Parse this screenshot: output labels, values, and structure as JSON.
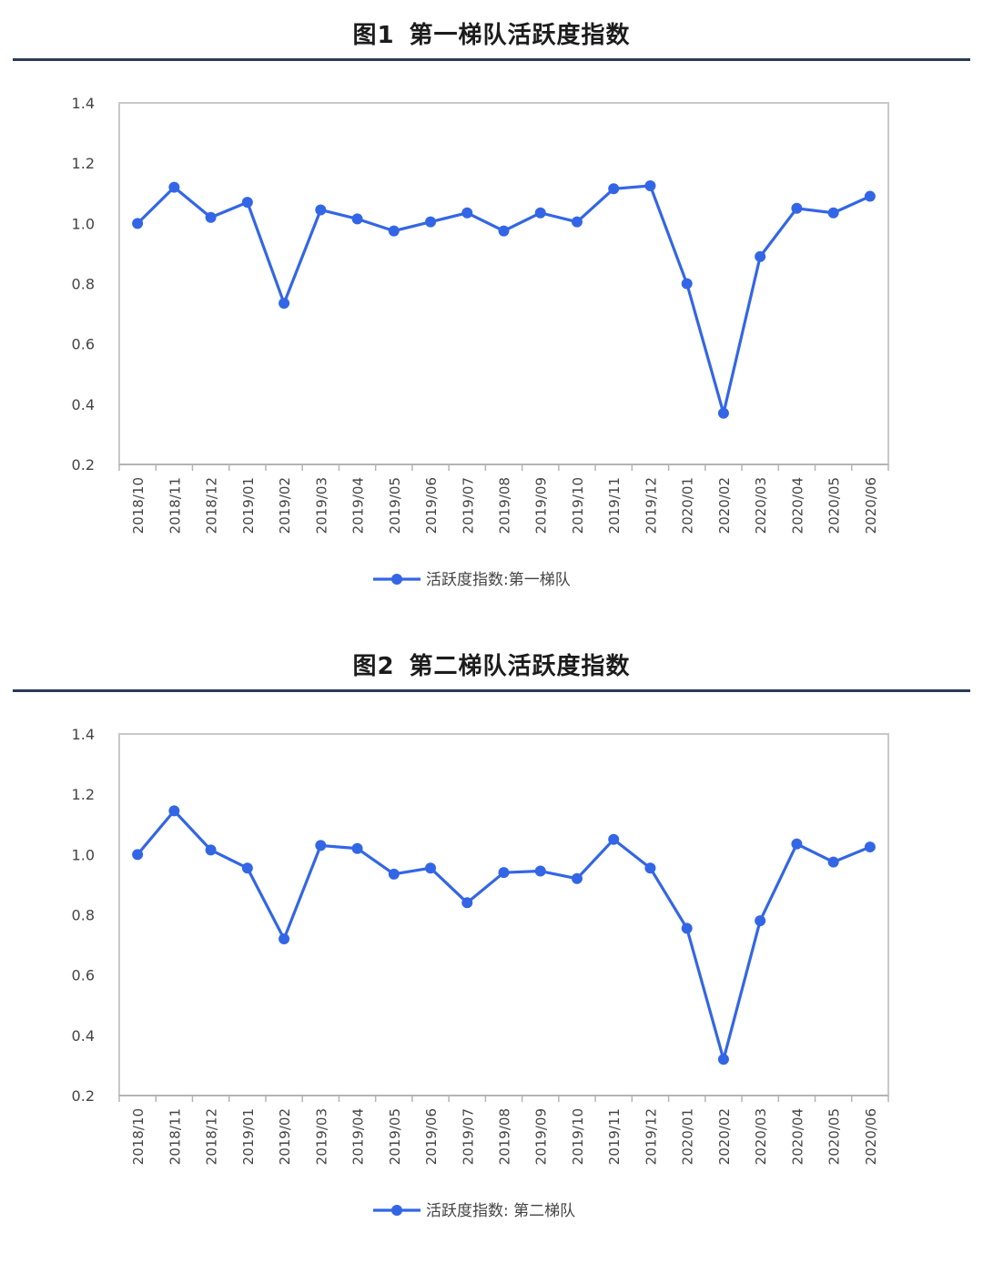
{
  "figures": [
    {
      "title_num": "图1",
      "title_text": "第一梯队活跃度指数",
      "chart_data": {
        "type": "line",
        "categories": [
          "2018/10",
          "2018/11",
          "2018/12",
          "2019/01",
          "2019/02",
          "2019/03",
          "2019/04",
          "2019/05",
          "2019/06",
          "2019/07",
          "2019/08",
          "2019/09",
          "2019/10",
          "2019/11",
          "2019/12",
          "2020/01",
          "2020/02",
          "2020/03",
          "2020/04",
          "2020/05",
          "2020/06"
        ],
        "series": [
          {
            "name": "活跃度指数:第一梯队",
            "color": "#3366e6",
            "values": [
              1.0,
              1.12,
              1.02,
              1.07,
              0.735,
              1.045,
              1.015,
              0.975,
              1.005,
              1.035,
              0.975,
              1.035,
              1.005,
              1.115,
              1.125,
              0.8,
              0.37,
              0.89,
              1.05,
              1.035,
              1.09
            ]
          }
        ],
        "yticks": [
          "0.2",
          "0.4",
          "0.6",
          "0.8",
          "1.0",
          "1.2",
          "1.4"
        ],
        "ylim": [
          0.2,
          1.4
        ],
        "legend_position": "bottom",
        "grid": false
      }
    },
    {
      "title_num": "图2",
      "title_text": "第二梯队活跃度指数",
      "chart_data": {
        "type": "line",
        "categories": [
          "2018/10",
          "2018/11",
          "2018/12",
          "2019/01",
          "2019/02",
          "2019/03",
          "2019/04",
          "2019/05",
          "2019/06",
          "2019/07",
          "2019/08",
          "2019/09",
          "2019/10",
          "2019/11",
          "2019/12",
          "2020/01",
          "2020/02",
          "2020/03",
          "2020/04",
          "2020/05",
          "2020/06"
        ],
        "series": [
          {
            "name": "活跃度指数: 第二梯队",
            "color": "#3366e6",
            "values": [
              1.0,
              1.145,
              1.015,
              0.955,
              0.72,
              1.03,
              1.02,
              0.935,
              0.955,
              0.84,
              0.94,
              0.945,
              0.92,
              1.05,
              0.955,
              0.755,
              0.32,
              0.78,
              1.035,
              0.975,
              1.025
            ]
          }
        ],
        "yticks": [
          "0.2",
          "0.4",
          "0.6",
          "0.8",
          "1.0",
          "1.2",
          "1.4"
        ],
        "ylim": [
          0.2,
          1.4
        ],
        "legend_position": "bottom",
        "grid": false
      }
    }
  ]
}
